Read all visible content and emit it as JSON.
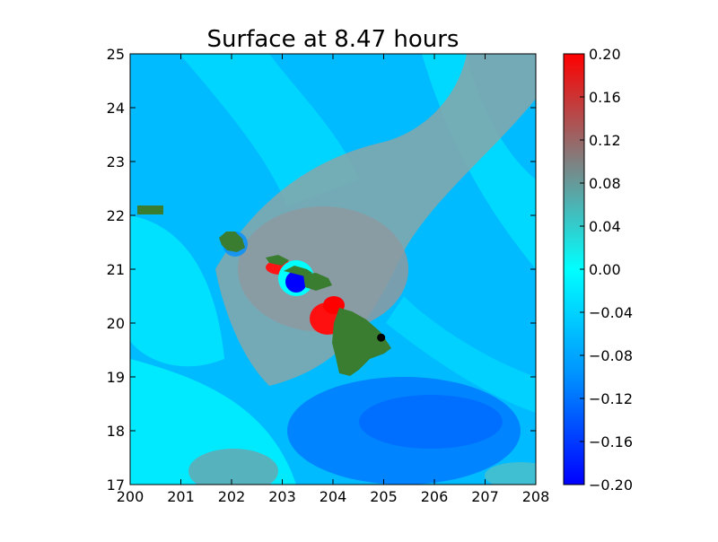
{
  "chart_data": {
    "type": "heatmap",
    "title": "Surface at 8.47 hours",
    "xlabel": "",
    "ylabel": "",
    "xlim": [
      200,
      208
    ],
    "ylim": [
      17,
      25
    ],
    "x_ticks": [
      "200",
      "201",
      "202",
      "203",
      "204",
      "205",
      "206",
      "207",
      "208"
    ],
    "y_ticks": [
      "17",
      "18",
      "19",
      "20",
      "21",
      "22",
      "23",
      "24",
      "25"
    ],
    "colorbar": {
      "range": [
        -0.2,
        0.2
      ],
      "ticks": [
        "0.20",
        "0.16",
        "0.12",
        "0.08",
        "0.04",
        "0.00",
        "−0.04",
        "−0.08",
        "−0.12",
        "−0.16",
        "−0.20"
      ],
      "colors": [
        "#0000ff",
        "#0090ff",
        "#00ffff",
        "#808080",
        "#ff0000"
      ]
    },
    "land_color": "#3a7d30",
    "marker": {
      "x": 204.95,
      "y": 19.73,
      "color": "#000000"
    },
    "grid": false,
    "legend": "none"
  }
}
